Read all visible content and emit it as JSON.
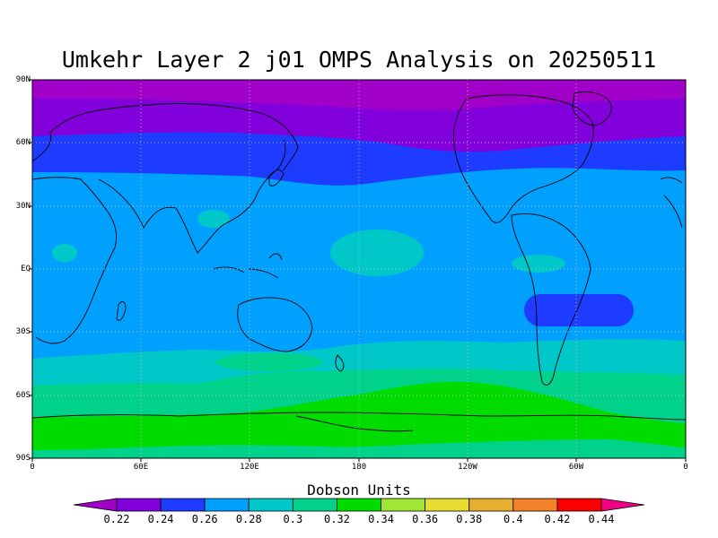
{
  "title": "Umkehr Layer 2 j01 OMPS Analysis on 20250511",
  "lat_labels": [
    "90N",
    "60N",
    "30N",
    "EQ",
    "30S",
    "60S",
    "90S"
  ],
  "lon_labels": [
    "0",
    "60E",
    "120E",
    "180",
    "120W",
    "60W",
    "0"
  ],
  "legend": {
    "title": "Dobson Units",
    "ticks": [
      "0.22",
      "0.24",
      "0.26",
      "0.28",
      "0.3",
      "0.32",
      "0.34",
      "0.36",
      "0.38",
      "0.4",
      "0.42",
      "0.44"
    ],
    "colors": [
      "#a000c8",
      "#8200dc",
      "#1e3cff",
      "#00a0ff",
      "#00c8c8",
      "#00d28c",
      "#00dc00",
      "#a0e632",
      "#e6dc32",
      "#e6af2d",
      "#f08228",
      "#fa0000",
      "#f00082"
    ]
  },
  "field": {
    "units": "Dobson Units",
    "bands": [
      {
        "color": "#a000c8",
        "range": "< 0.22"
      },
      {
        "color": "#8200dc",
        "range": "0.22-0.24"
      },
      {
        "color": "#1e3cff",
        "range": "0.24-0.26"
      },
      {
        "color": "#00a0ff",
        "range": "0.26-0.28"
      },
      {
        "color": "#00c8c8",
        "range": "0.28-0.30"
      },
      {
        "color": "#00d28c",
        "range": "0.30-0.32"
      },
      {
        "color": "#00dc00",
        "range": "0.32-0.34"
      }
    ]
  }
}
